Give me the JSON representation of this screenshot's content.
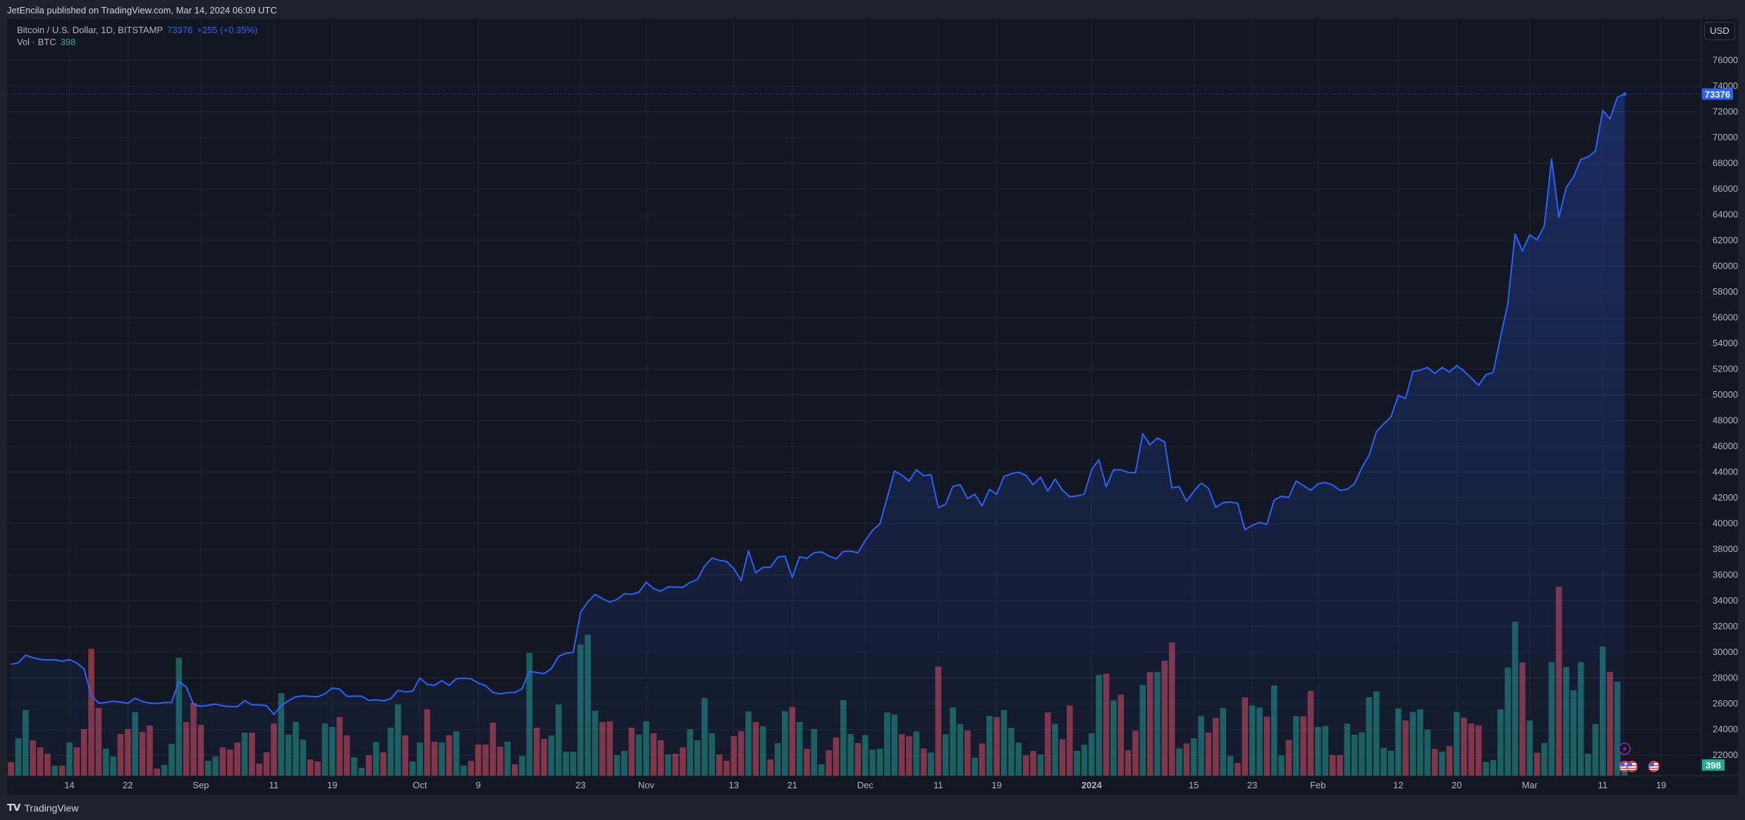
{
  "header": {
    "publisher": "JetEncila published on TradingView.com, Mar 14, 2024 06:09 UTC"
  },
  "legend": {
    "symbol": "Bitcoin / U.S. Dollar, 1D, BITSTAMP",
    "last": "73376",
    "change": "+255 (+0.35%)",
    "vol_label": "Vol · BTC",
    "vol_value": "398"
  },
  "axis": {
    "currency_button": "USD",
    "last_price_tag": "73376",
    "volume_tag": "398"
  },
  "footer": {
    "brand": "TradingView",
    "logo_text": "TV"
  },
  "colors": {
    "line": "#2962ff",
    "up": "#22ab94",
    "down": "#f7525f",
    "background": "#131722",
    "event": "#9c27b0"
  },
  "chart_data": {
    "type": "line",
    "series_line": "close",
    "start_date": "2023-08-06",
    "end_date": "2024-03-14",
    "ylim": [
      21000,
      77000
    ],
    "y_ticks": [
      "22000",
      "24000",
      "26000",
      "28000",
      "30000",
      "32000",
      "34000",
      "36000",
      "38000",
      "40000",
      "42000",
      "44000",
      "46000",
      "48000",
      "50000",
      "52000",
      "54000",
      "56000",
      "58000",
      "60000",
      "62000",
      "64000",
      "66000",
      "68000",
      "70000",
      "72000",
      "74000",
      "76000"
    ],
    "x_ticks": [
      {
        "label": "14",
        "date": "2023-08-14"
      },
      {
        "label": "22",
        "date": "2023-08-22"
      },
      {
        "label": "Sep",
        "date": "2023-09-01"
      },
      {
        "label": "11",
        "date": "2023-09-11"
      },
      {
        "label": "19",
        "date": "2023-09-19"
      },
      {
        "label": "Oct",
        "date": "2023-10-01"
      },
      {
        "label": "9",
        "date": "2023-10-09"
      },
      {
        "label": "23",
        "date": "2023-10-23"
      },
      {
        "label": "Nov",
        "date": "2023-11-01"
      },
      {
        "label": "13",
        "date": "2023-11-13"
      },
      {
        "label": "21",
        "date": "2023-11-21"
      },
      {
        "label": "Dec",
        "date": "2023-12-01"
      },
      {
        "label": "11",
        "date": "2023-12-11"
      },
      {
        "label": "19",
        "date": "2023-12-19"
      },
      {
        "label": "2024",
        "date": "2024-01-01"
      },
      {
        "label": "15",
        "date": "2024-01-15"
      },
      {
        "label": "23",
        "date": "2024-01-23"
      },
      {
        "label": "Feb",
        "date": "2024-02-01"
      },
      {
        "label": "12",
        "date": "2024-02-12"
      },
      {
        "label": "20",
        "date": "2024-02-20"
      },
      {
        "label": "Mar",
        "date": "2024-03-01"
      },
      {
        "label": "11",
        "date": "2024-03-11"
      },
      {
        "label": "19",
        "date": "2024-03-19"
      }
    ],
    "grid": true,
    "close": [
      29050,
      29180,
      29770,
      29570,
      29440,
      29400,
      29420,
      29300,
      29420,
      29170,
      28700,
      26630,
      26050,
      26100,
      26190,
      26120,
      26040,
      26430,
      26160,
      26050,
      26010,
      26090,
      26100,
      27720,
      27300,
      25940,
      25800,
      25870,
      25970,
      25820,
      25780,
      25760,
      26240,
      25900,
      25900,
      25840,
      25160,
      25840,
      26230,
      26530,
      26600,
      26570,
      26530,
      26770,
      27210,
      27130,
      26570,
      26580,
      26580,
      26250,
      26300,
      26220,
      26370,
      27030,
      26910,
      26970,
      27990,
      27500,
      27430,
      27790,
      27420,
      27950,
      27970,
      27940,
      27600,
      27400,
      26870,
      26760,
      26860,
      26870,
      27160,
      28520,
      28420,
      28330,
      28720,
      29680,
      29920,
      29990,
      33080,
      33900,
      34500,
      34160,
      33900,
      34090,
      34540,
      34500,
      34660,
      35440,
      34940,
      34740,
      35080,
      35050,
      35040,
      35420,
      35650,
      36700,
      37320,
      37140,
      37060,
      36500,
      35560,
      37880,
      36170,
      36600,
      36590,
      37380,
      37470,
      35810,
      37420,
      37300,
      37730,
      37800,
      37480,
      37250,
      37830,
      37860,
      37720,
      38690,
      39470,
      39970,
      41990,
      44080,
      43770,
      43290,
      44170,
      43720,
      43790,
      41240,
      41490,
      42890,
      43020,
      41940,
      42280,
      41370,
      42660,
      42270,
      43660,
      43870,
      43990,
      43740,
      43020,
      43600,
      42520,
      43470,
      42590,
      42080,
      42140,
      42280,
      44180,
      44960,
      42850,
      44180,
      44170,
      43970,
      43940,
      46970,
      46120,
      46640,
      46340,
      42780,
      42850,
      41730,
      42510,
      43150,
      42740,
      41260,
      41620,
      41670,
      41570,
      39520,
      39860,
      40080,
      39940,
      41820,
      42120,
      42030,
      43300,
      42950,
      42580,
      43080,
      43190,
      43000,
      42580,
      42660,
      43090,
      44340,
      45300,
      47130,
      47750,
      48290,
      49950,
      49720,
      51820,
      51920,
      52130,
      51660,
      52130,
      51780,
      52270,
      51850,
      51300,
      50740,
      51560,
      51730,
      54500,
      57060,
      62500,
      61180,
      62440,
      62040,
      63130,
      68330,
      63800,
      66100,
      66920,
      68300,
      68500,
      68960,
      72100,
      71460,
      73120,
      73376
    ],
    "volume_btc": [
      503,
      1404,
      2464,
      1325,
      1060,
      821,
      371,
      371,
      1245,
      1060,
      1748,
      4768,
      2543,
      1007,
      715,
      1563,
      1748,
      2384,
      1642,
      1881,
      265,
      397,
      1192,
      4424,
      2013,
      2728,
      1907,
      556,
      715,
      1060,
      980,
      1245,
      1616,
      1616,
      450,
      874,
      1960,
      3099,
      1536,
      2013,
      1351,
      609,
      530,
      1960,
      1828,
      2199,
      1510,
      689,
      291,
      768,
      1272,
      874,
      1801,
      2675,
      1510,
      530,
      1245,
      2490,
      1272,
      1245,
      1510,
      1669,
      371,
      556,
      1166,
      1166,
      1987,
      1086,
      1272,
      424,
      742,
      4609,
      1801,
      1377,
      1510,
      2675,
      901,
      901,
      4927,
      5298,
      2437,
      2013,
      2040,
      768,
      927,
      1801,
      1536,
      2040,
      1589,
      1325,
      795,
      821,
      1060,
      1740,
      1325,
      2914,
      1589,
      795,
      556,
      1483,
      1669,
      2411,
      2013,
      1854,
      609,
      1222,
      2420,
      2578,
      2013,
      1007,
      1748,
      424,
      954,
      1431,
      2835,
      1563,
      1222,
      1527,
      975,
      1005,
      2374,
      2295,
      1556,
      1478,
      1665,
      1024,
      867,
      4098,
      1556,
      2561,
      1931,
      1694,
      680,
      1212,
      2246,
      2197,
      2463,
      1793,
      1241,
      758,
      926,
      788,
      2374,
      1950,
      1369,
      2640,
      926,
      1162,
      1586,
      3782,
      3832,
      2827,
      3044,
      946,
      1694,
      3408,
      3891,
      3891,
      4314,
      5004,
      1024,
      1212,
      1399,
      2246,
      1615,
      2167,
      2541,
      739,
      473,
      2935,
      2640,
      2561,
      2216,
      3388,
      758,
      1336,
      2233,
      2233,
      3184,
      1830,
      1867,
      769,
      769,
      1958,
      1537,
      1629,
      2946,
      3166,
      1043,
      933,
      2525,
      2068,
      2397,
      2489,
      1720,
      1007,
      897,
      1116,
      2397,
      2178,
      1958,
      1885,
      512,
      586,
      2489,
      4063,
      5783,
      4246,
      2068,
      860,
      1226,
      4264,
      7100,
      4081,
      3203,
      4264,
      824,
      1940,
      4850,
      3898,
      3532,
      398
    ],
    "volume_up": [
      0,
      1,
      1,
      0,
      0,
      0,
      1,
      0,
      1,
      0,
      0,
      0,
      0,
      1,
      1,
      0,
      0,
      1,
      0,
      0,
      0,
      1,
      1,
      1,
      0,
      0,
      0,
      1,
      1,
      0,
      0,
      0,
      1,
      0,
      0,
      0,
      0,
      1,
      1,
      1,
      1,
      0,
      0,
      1,
      1,
      0,
      0,
      1,
      1,
      0,
      1,
      0,
      1,
      1,
      0,
      1,
      1,
      0,
      0,
      1,
      0,
      1,
      1,
      0,
      0,
      0,
      0,
      0,
      1,
      0,
      1,
      1,
      0,
      0,
      1,
      1,
      1,
      1,
      1,
      1,
      1,
      0,
      0,
      1,
      1,
      0,
      1,
      1,
      0,
      0,
      1,
      0,
      0,
      1,
      1,
      1,
      1,
      0,
      0,
      0,
      0,
      1,
      0,
      1,
      0,
      1,
      1,
      0,
      1,
      0,
      1,
      1,
      0,
      0,
      1,
      1,
      0,
      1,
      1,
      1,
      1,
      1,
      0,
      0,
      1,
      0,
      1,
      0,
      1,
      1,
      1,
      0,
      1,
      0,
      1,
      0,
      1,
      1,
      1,
      0,
      0,
      1,
      0,
      1,
      0,
      0,
      1,
      1,
      1,
      1,
      0,
      1,
      0,
      0,
      0,
      1,
      0,
      1,
      0,
      0,
      1,
      0,
      1,
      1,
      0,
      0,
      1,
      1,
      0,
      0,
      1,
      1,
      0,
      1,
      1,
      0,
      1,
      0,
      0,
      1,
      1,
      0,
      0,
      1,
      1,
      1,
      1,
      1,
      1,
      1,
      1,
      0,
      1,
      1,
      1,
      0,
      1,
      0,
      1,
      0,
      0,
      0,
      1,
      1,
      1,
      1,
      1,
      0,
      1,
      0,
      1,
      1,
      0,
      1,
      1,
      1,
      1,
      1,
      1,
      0,
      1,
      1
    ],
    "events": [
      {
        "type": "lightning",
        "date": "2024-03-14"
      },
      {
        "type": "us-flag",
        "date": "2024-03-14"
      },
      {
        "type": "us-flag",
        "date": "2024-03-15"
      },
      {
        "type": "us-flag",
        "date": "2024-03-18"
      }
    ]
  }
}
